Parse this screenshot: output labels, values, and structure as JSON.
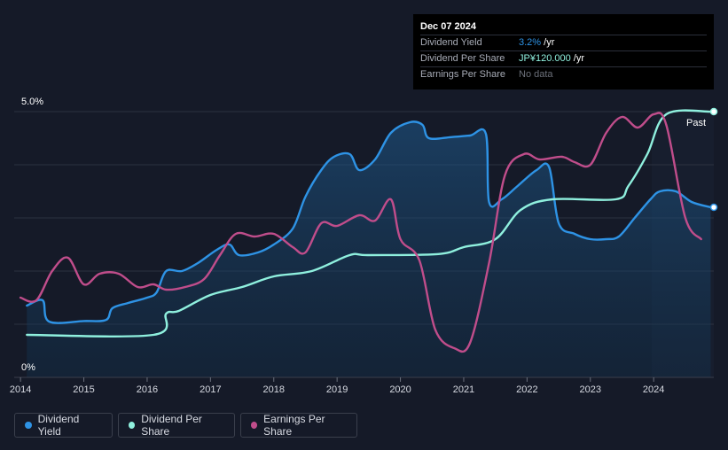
{
  "tooltip": {
    "date": "Dec 07 2024",
    "rows": [
      {
        "label": "Dividend Yield",
        "value": "3.2%",
        "suffix": " /yr"
      },
      {
        "label": "Dividend Per Share",
        "value": "JP¥120.000",
        "suffix": " /yr"
      },
      {
        "label": "Earnings Per Share",
        "value": "No data",
        "suffix": ""
      }
    ]
  },
  "past_label": "Past",
  "legend": [
    {
      "label": "Dividend Yield",
      "color": "#2e93e5"
    },
    {
      "label": "Dividend Per Share",
      "color": "#8ff0de"
    },
    {
      "label": "Earnings Per Share",
      "color": "#c04d8b"
    }
  ],
  "chart_data": {
    "type": "line",
    "title": "",
    "xlabel": "",
    "ylabel": "",
    "y_axis_labels": [
      "5.0%",
      "0%"
    ],
    "ylim": [
      0,
      5
    ],
    "xlim": [
      2013.9,
      2024.95
    ],
    "x_ticks": [
      2014,
      2015,
      2016,
      2017,
      2018,
      2019,
      2020,
      2021,
      2022,
      2023,
      2024
    ],
    "grid": true,
    "legend_position": "bottom-left",
    "series": [
      {
        "name": "Dividend Yield",
        "color": "#2e93e5",
        "filled": true,
        "points": [
          [
            2014.1,
            1.35
          ],
          [
            2014.35,
            1.45
          ],
          [
            2014.45,
            1.05
          ],
          [
            2015.0,
            1.06
          ],
          [
            2015.35,
            1.08
          ],
          [
            2015.45,
            1.3
          ],
          [
            2015.7,
            1.4
          ],
          [
            2016.0,
            1.5
          ],
          [
            2016.15,
            1.6
          ],
          [
            2016.3,
            2.0
          ],
          [
            2016.55,
            2.0
          ],
          [
            2016.8,
            2.15
          ],
          [
            2017.1,
            2.4
          ],
          [
            2017.3,
            2.5
          ],
          [
            2017.45,
            2.3
          ],
          [
            2017.75,
            2.35
          ],
          [
            2018.0,
            2.5
          ],
          [
            2018.3,
            2.8
          ],
          [
            2018.5,
            3.4
          ],
          [
            2018.75,
            3.9
          ],
          [
            2018.95,
            4.15
          ],
          [
            2019.2,
            4.2
          ],
          [
            2019.35,
            3.9
          ],
          [
            2019.6,
            4.1
          ],
          [
            2019.85,
            4.6
          ],
          [
            2020.15,
            4.8
          ],
          [
            2020.35,
            4.75
          ],
          [
            2020.45,
            4.5
          ],
          [
            2020.8,
            4.52
          ],
          [
            2021.1,
            4.55
          ],
          [
            2021.35,
            4.58
          ],
          [
            2021.4,
            3.3
          ],
          [
            2021.6,
            3.35
          ],
          [
            2021.85,
            3.6
          ],
          [
            2022.15,
            3.9
          ],
          [
            2022.35,
            3.95
          ],
          [
            2022.5,
            2.9
          ],
          [
            2022.75,
            2.7
          ],
          [
            2023.0,
            2.6
          ],
          [
            2023.25,
            2.6
          ],
          [
            2023.45,
            2.65
          ],
          [
            2023.7,
            3.0
          ],
          [
            2023.95,
            3.35
          ],
          [
            2024.1,
            3.5
          ],
          [
            2024.35,
            3.5
          ],
          [
            2024.6,
            3.3
          ],
          [
            2024.9,
            3.2
          ]
        ]
      },
      {
        "name": "Dividend Per Share",
        "color": "#8ff0de",
        "filled": false,
        "points": [
          [
            2014.1,
            0.8
          ],
          [
            2016.1,
            0.8
          ],
          [
            2016.3,
            1.2
          ],
          [
            2016.5,
            1.25
          ],
          [
            2017.0,
            1.55
          ],
          [
            2017.5,
            1.7
          ],
          [
            2018.0,
            1.9
          ],
          [
            2018.6,
            2.0
          ],
          [
            2019.2,
            2.3
          ],
          [
            2019.5,
            2.3
          ],
          [
            2020.6,
            2.32
          ],
          [
            2021.0,
            2.45
          ],
          [
            2021.5,
            2.6
          ],
          [
            2021.9,
            3.15
          ],
          [
            2022.4,
            3.35
          ],
          [
            2023.4,
            3.35
          ],
          [
            2023.6,
            3.6
          ],
          [
            2023.9,
            4.2
          ],
          [
            2024.2,
            4.95
          ],
          [
            2024.9,
            5.0
          ]
        ]
      },
      {
        "name": "Earnings Per Share",
        "color": "#c04d8b",
        "filled": false,
        "points": [
          [
            2014.0,
            1.5
          ],
          [
            2014.25,
            1.45
          ],
          [
            2014.5,
            2.0
          ],
          [
            2014.75,
            2.25
          ],
          [
            2015.0,
            1.75
          ],
          [
            2015.25,
            1.95
          ],
          [
            2015.55,
            1.95
          ],
          [
            2015.85,
            1.7
          ],
          [
            2016.1,
            1.75
          ],
          [
            2016.3,
            1.65
          ],
          [
            2016.6,
            1.7
          ],
          [
            2016.9,
            1.85
          ],
          [
            2017.15,
            2.3
          ],
          [
            2017.4,
            2.7
          ],
          [
            2017.7,
            2.65
          ],
          [
            2018.0,
            2.7
          ],
          [
            2018.3,
            2.45
          ],
          [
            2018.5,
            2.35
          ],
          [
            2018.75,
            2.9
          ],
          [
            2019.0,
            2.85
          ],
          [
            2019.35,
            3.05
          ],
          [
            2019.6,
            2.95
          ],
          [
            2019.85,
            3.35
          ],
          [
            2020.0,
            2.6
          ],
          [
            2020.3,
            2.2
          ],
          [
            2020.55,
            0.9
          ],
          [
            2020.85,
            0.55
          ],
          [
            2021.1,
            0.65
          ],
          [
            2021.4,
            2.15
          ],
          [
            2021.65,
            3.8
          ],
          [
            2021.95,
            4.2
          ],
          [
            2022.2,
            4.1
          ],
          [
            2022.55,
            4.15
          ],
          [
            2022.75,
            4.05
          ],
          [
            2023.0,
            4.0
          ],
          [
            2023.25,
            4.6
          ],
          [
            2023.5,
            4.9
          ],
          [
            2023.75,
            4.7
          ],
          [
            2024.0,
            4.95
          ],
          [
            2024.2,
            4.75
          ],
          [
            2024.5,
            3.0
          ],
          [
            2024.75,
            2.6
          ]
        ]
      }
    ]
  }
}
